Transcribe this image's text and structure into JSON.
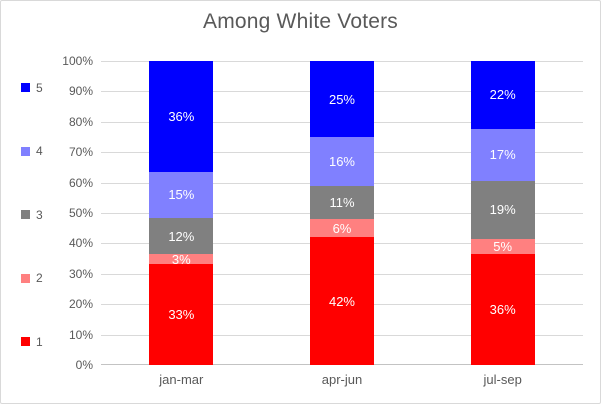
{
  "chart_data": {
    "type": "bar",
    "subtype": "stacked-100",
    "title": "Among White Voters",
    "categories": [
      "jan-mar",
      "apr-jun",
      "jul-sep"
    ],
    "series": [
      {
        "name": "1",
        "color": "#ff0000",
        "values": [
          33,
          42,
          36
        ],
        "labels": [
          "33%",
          "42%",
          "36%"
        ]
      },
      {
        "name": "2",
        "color": "#ff8080",
        "values": [
          3,
          6,
          5
        ],
        "labels": [
          "3%",
          "6%",
          "5%"
        ]
      },
      {
        "name": "3",
        "color": "#808080",
        "values": [
          12,
          11,
          19
        ],
        "labels": [
          "12%",
          "11%",
          "19%"
        ]
      },
      {
        "name": "4",
        "color": "#8080ff",
        "values": [
          15,
          16,
          17
        ],
        "labels": [
          "15%",
          "16%",
          "17%"
        ]
      },
      {
        "name": "5",
        "color": "#0000ff",
        "values": [
          36,
          25,
          22
        ],
        "labels": [
          "36%",
          "25%",
          "22%"
        ]
      }
    ],
    "y_ticks": [
      "0%",
      "10%",
      "20%",
      "30%",
      "40%",
      "50%",
      "60%",
      "70%",
      "80%",
      "90%",
      "100%"
    ],
    "ylim": [
      0,
      100
    ],
    "grid": true,
    "legend_position": "left",
    "legend_order_top_to_bottom": [
      "5",
      "4",
      "3",
      "2",
      "1"
    ],
    "colors": {
      "title_text": "#595959",
      "axis_text": "#595959",
      "gridline": "#d9d9d9",
      "axis_line": "#c3c3c3",
      "data_label_text": "#ffffff",
      "background": "#ffffff",
      "border": "#d9d9d9"
    }
  }
}
